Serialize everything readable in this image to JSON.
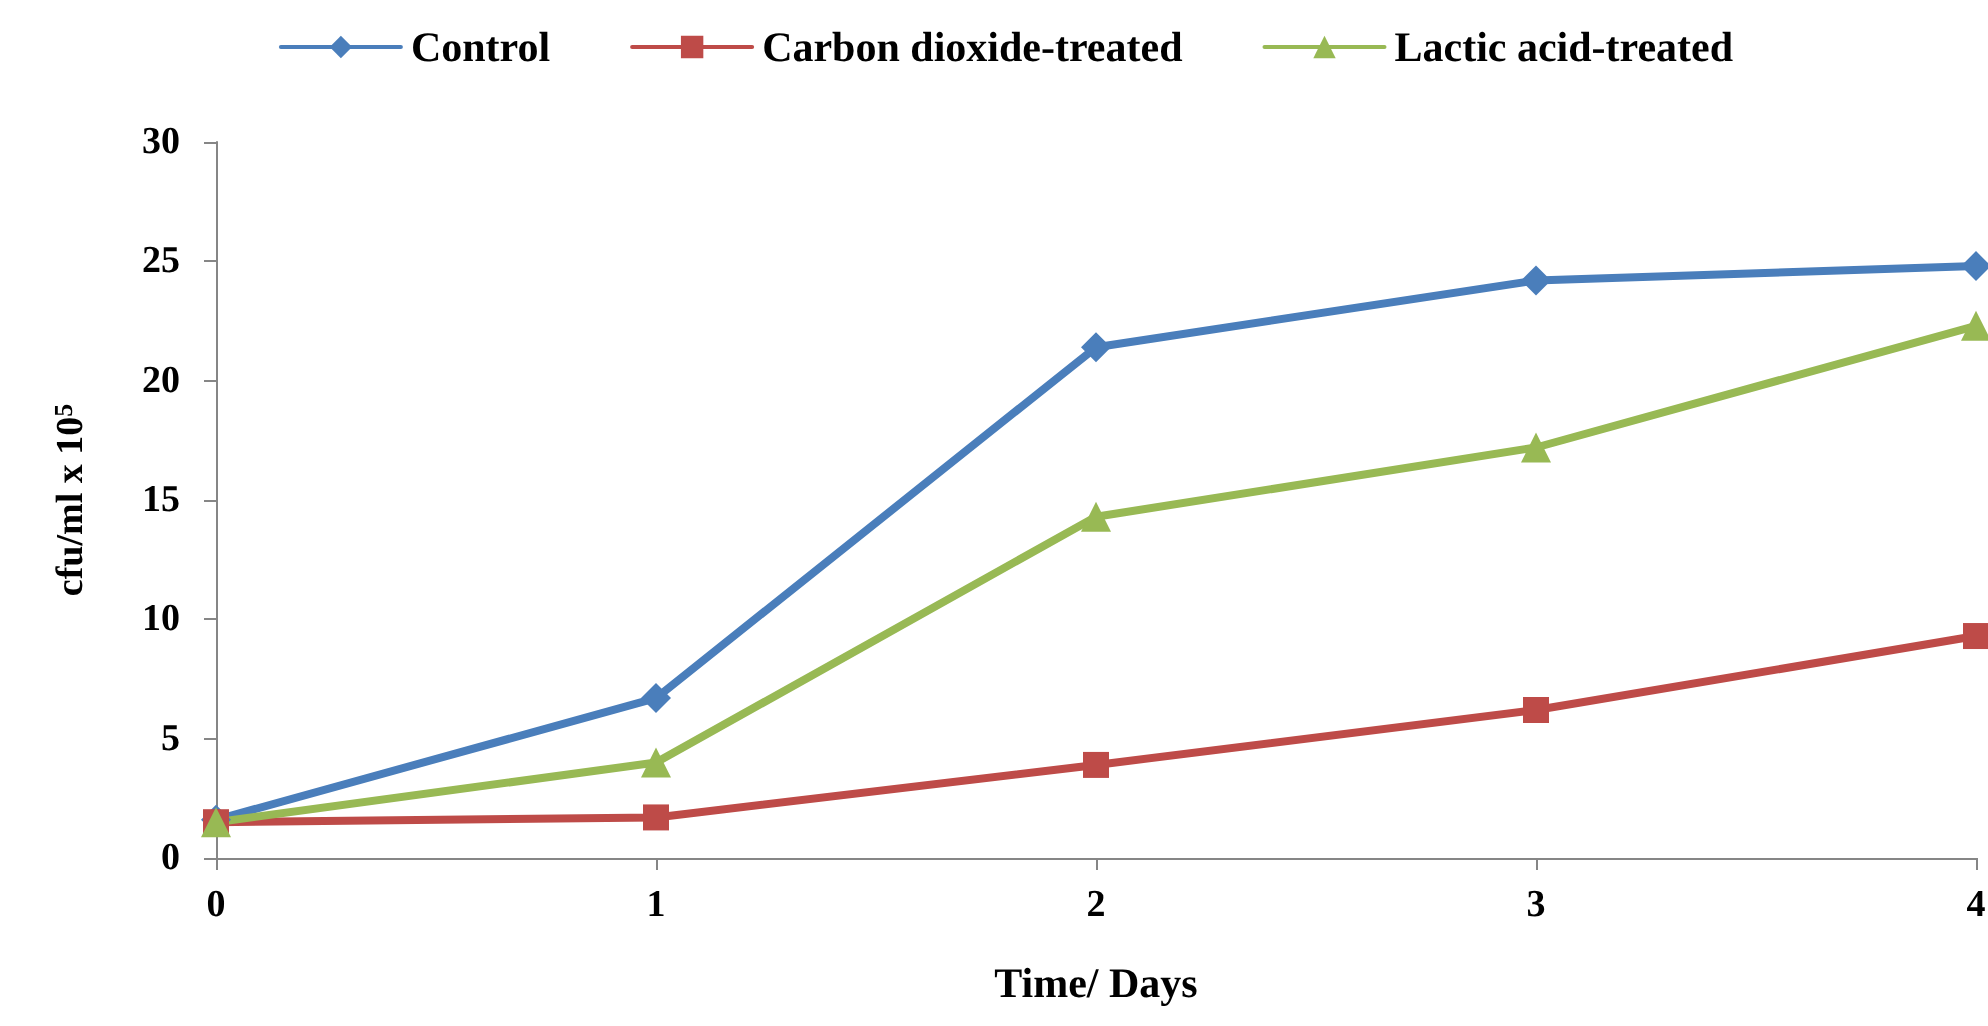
{
  "chart_data": {
    "type": "line",
    "xlabel": "Time/ Days",
    "ylabel": "cfu/ml x 10$^{5}$",
    "x": [
      0,
      1,
      2,
      3,
      4
    ],
    "xlim": [
      0,
      4
    ],
    "xticks": [
      0,
      1,
      2,
      3,
      4
    ],
    "ylim": [
      0,
      30
    ],
    "yticks": [
      0,
      5,
      10,
      15,
      20,
      25,
      30
    ],
    "grid": false,
    "legend": "top",
    "line_style": "solid",
    "series": [
      {
        "name": "Control",
        "color": "#4a7ebb",
        "marker": "diamond",
        "values": [
          1.6,
          6.7,
          21.4,
          24.2,
          24.8
        ]
      },
      {
        "name": "Carbon dioxide-treated",
        "color": "#be4b48",
        "marker": "square",
        "values": [
          1.5,
          1.7,
          3.9,
          6.2,
          9.3
        ]
      },
      {
        "name": "Lactic acid-treated",
        "color": "#98b954",
        "marker": "triangle",
        "values": [
          1.5,
          4.0,
          14.3,
          17.2,
          22.3
        ]
      }
    ]
  }
}
